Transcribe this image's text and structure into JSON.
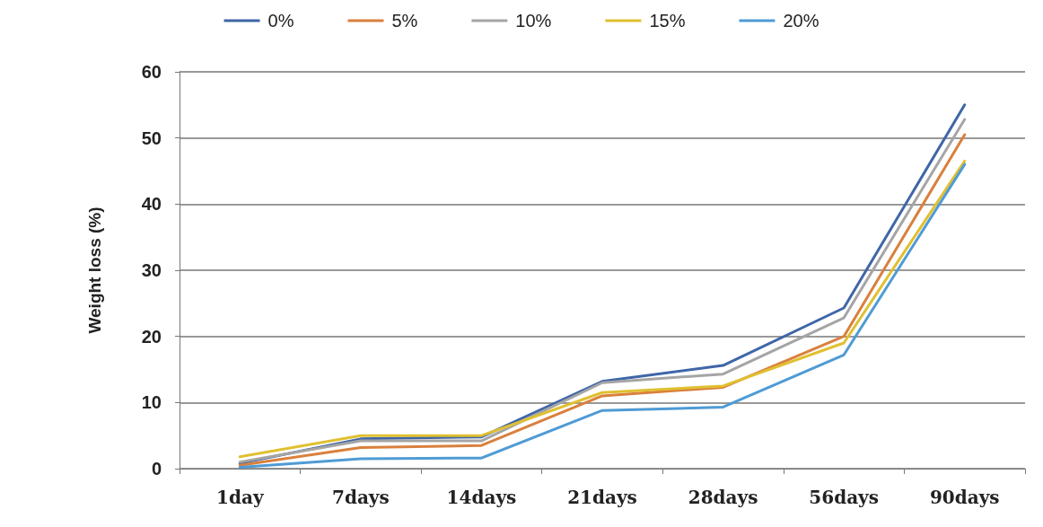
{
  "chart_data": {
    "type": "line",
    "ylabel": "Weight loss (%)",
    "categories": [
      "1day",
      "7days",
      "14days",
      "21days",
      "28days",
      "56days",
      "90days"
    ],
    "series": [
      {
        "name": "0%",
        "color": "#3f66a8",
        "values": [
          0.8,
          4.5,
          4.8,
          13.2,
          15.6,
          24.3,
          55.0
        ]
      },
      {
        "name": "5%",
        "color": "#d9803d",
        "values": [
          0.5,
          3.2,
          3.5,
          11.0,
          12.3,
          20.0,
          50.5
        ]
      },
      {
        "name": "10%",
        "color": "#a5a5a5",
        "values": [
          1.0,
          4.2,
          4.2,
          13.0,
          14.3,
          22.8,
          52.8
        ]
      },
      {
        "name": "15%",
        "color": "#e0c030",
        "values": [
          1.8,
          5.0,
          5.0,
          11.5,
          12.5,
          19.0,
          46.5
        ]
      },
      {
        "name": "20%",
        "color": "#4f9bd5",
        "values": [
          0.2,
          1.5,
          1.6,
          8.8,
          9.3,
          17.2,
          46.0
        ]
      }
    ],
    "ylim": [
      0,
      60
    ],
    "yticks": [
      0,
      10,
      20,
      30,
      40,
      50,
      60
    ],
    "grid": "y",
    "legend": "top",
    "marker": "none",
    "line_style": "solid"
  }
}
